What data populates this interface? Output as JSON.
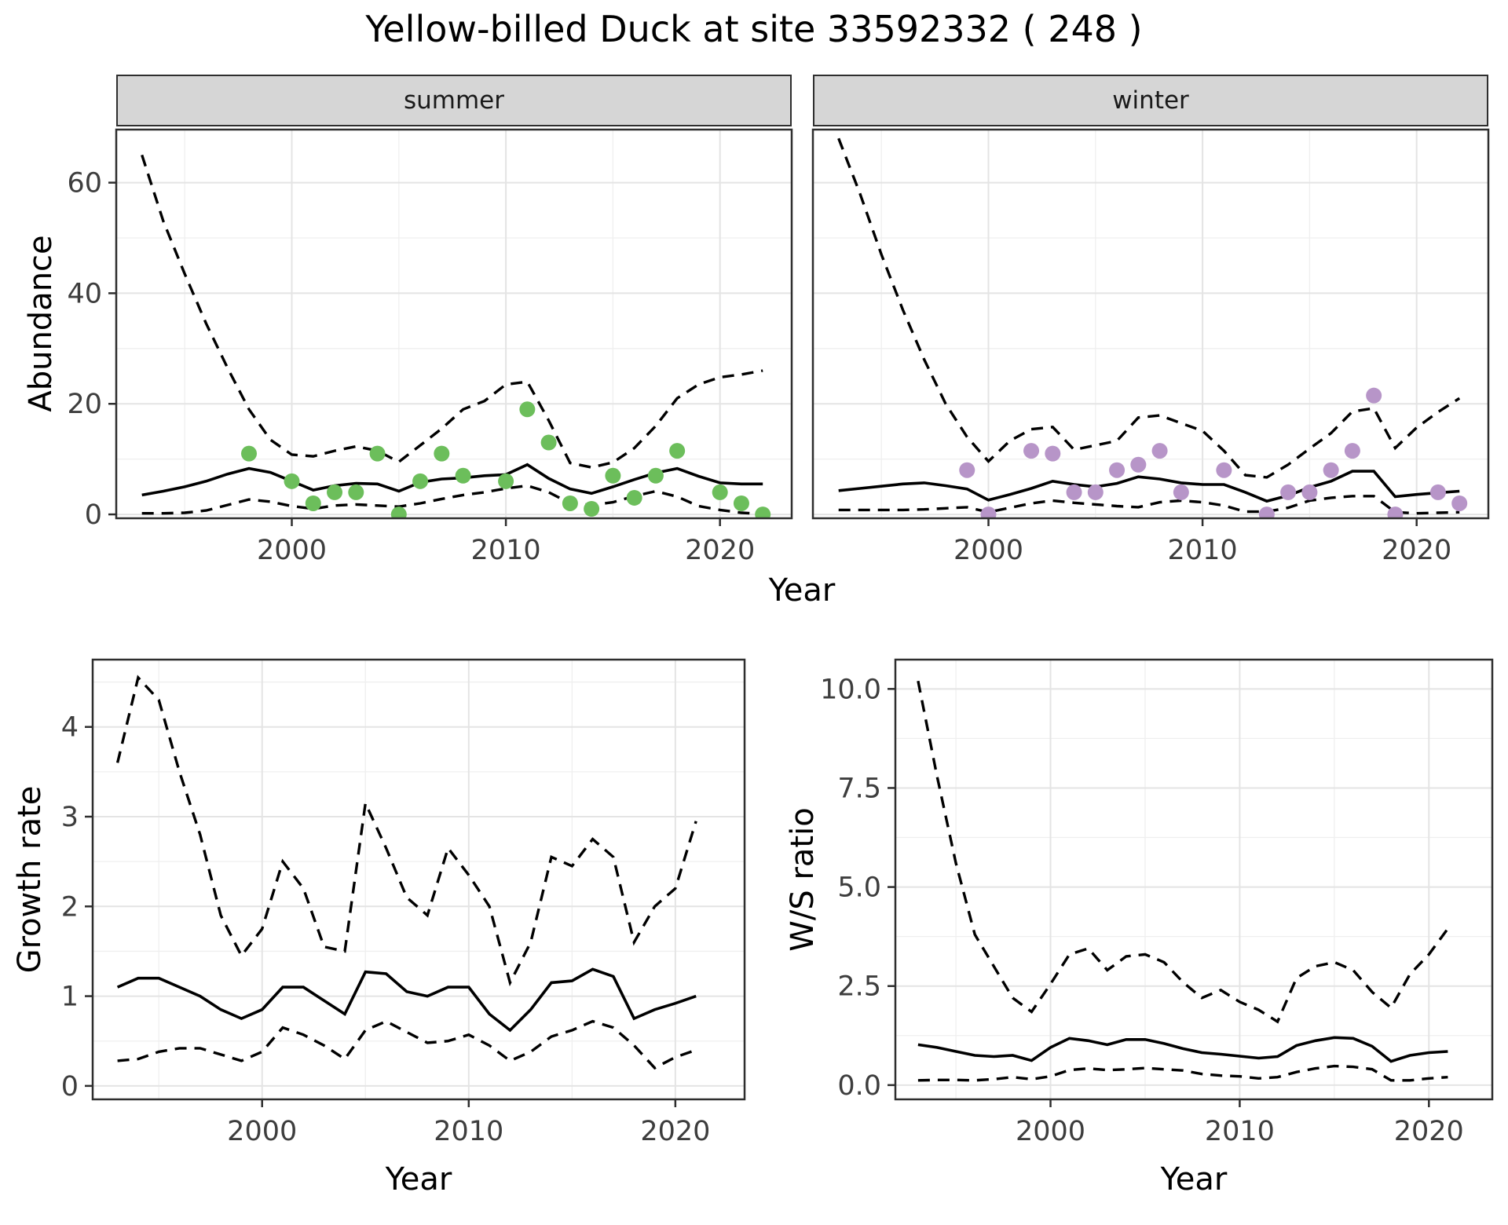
{
  "title": "Yellow-billed Duck at site 33592332 ( 248 )",
  "colors": {
    "summer_point": "#6cbe5b",
    "winter_point": "#b795c8",
    "line": "#000000",
    "strip_bg": "#d6d6d6",
    "panel_border": "#2e2e2e",
    "grid_major": "#e4e4e4",
    "grid_minor": "#efefef",
    "tick_text": "#3d3d3d"
  },
  "labels": {
    "year_axis_top": "Year",
    "year_axis_growth": "Year",
    "year_axis_ws": "Year"
  },
  "chart_data": [
    {
      "id": "abundance-summer",
      "type": "line",
      "facet_label": "summer",
      "ylabel": "Abundance",
      "xlabel": "Year",
      "legend_position": "none",
      "grid": true,
      "x_range": [
        1991.8,
        2023.35
      ],
      "y_range": [
        -0.7,
        69.6
      ],
      "x_ticks": [
        2000,
        2010,
        2020
      ],
      "x_tick_labels": [
        "2000",
        "2010",
        "2020"
      ],
      "x_minor": [
        1995,
        2005,
        2015
      ],
      "y_ticks": [
        0,
        20,
        40,
        60
      ],
      "y_tick_labels": [
        "0",
        "20",
        "40",
        "60"
      ],
      "y_minor": [
        10,
        30,
        50
      ],
      "years": [
        1993,
        1994,
        1995,
        1996,
        1997,
        1998,
        1999,
        2000,
        2001,
        2002,
        2003,
        2004,
        2005,
        2006,
        2007,
        2008,
        2009,
        2010,
        2011,
        2012,
        2013,
        2014,
        2015,
        2016,
        2017,
        2018,
        2019,
        2020,
        2021,
        2022
      ],
      "series": [
        {
          "name": "model estimate",
          "style": "solid",
          "values": [
            3.5,
            4.2,
            5.0,
            6.0,
            7.3,
            8.3,
            7.6,
            6.0,
            4.4,
            5.2,
            5.6,
            5.5,
            4.2,
            5.8,
            6.4,
            6.6,
            7.0,
            7.2,
            9.0,
            6.5,
            4.6,
            3.8,
            5.0,
            6.3,
            7.5,
            8.3,
            6.9,
            5.7,
            5.5,
            5.5
          ]
        },
        {
          "name": "lower CI",
          "style": "dashed",
          "values": [
            0.2,
            0.2,
            0.3,
            0.7,
            1.7,
            2.7,
            2.3,
            1.5,
            1.0,
            1.6,
            1.8,
            1.6,
            1.4,
            2.0,
            2.8,
            3.5,
            4.0,
            4.7,
            5.2,
            4.0,
            2.0,
            1.7,
            2.2,
            3.3,
            4.2,
            3.2,
            1.5,
            0.8,
            0.3,
            0.1
          ]
        },
        {
          "name": "upper CI",
          "style": "dashed",
          "values": [
            65,
            53,
            43.5,
            34.5,
            26.5,
            19,
            13.5,
            10.8,
            10.5,
            11.5,
            12.3,
            11.5,
            9.5,
            12.5,
            15.5,
            19,
            20.5,
            23.5,
            24,
            17,
            9.3,
            8.5,
            9.4,
            12,
            16,
            21,
            23.5,
            24.8,
            25.3,
            26
          ]
        }
      ],
      "points": {
        "name": "observed counts (summer)",
        "color": "#6cbe5b",
        "x": [
          1998,
          2000,
          2001,
          2002,
          2003,
          2004,
          2005,
          2006,
          2007,
          2008,
          2010,
          2011,
          2012,
          2013,
          2014,
          2015,
          2016,
          2017,
          2018,
          2020,
          2021,
          2022
        ],
        "y": [
          11,
          6,
          2,
          4,
          4,
          11,
          0,
          6,
          11,
          7,
          6,
          19,
          13,
          2,
          1,
          7,
          3,
          7,
          11.5,
          4,
          2,
          0
        ]
      }
    },
    {
      "id": "abundance-winter",
      "type": "line",
      "facet_label": "winter",
      "ylabel": "Abundance",
      "xlabel": "Year",
      "legend_position": "none",
      "grid": true,
      "x_range": [
        1991.8,
        2023.35
      ],
      "y_range": [
        -0.7,
        69.6
      ],
      "x_ticks": [
        2000,
        2010,
        2020
      ],
      "x_tick_labels": [
        "2000",
        "2010",
        "2020"
      ],
      "x_minor": [
        1995,
        2005,
        2015
      ],
      "y_ticks": [
        0,
        20,
        40,
        60
      ],
      "y_tick_labels": [
        "0",
        "20",
        "40",
        "60"
      ],
      "y_minor": [
        10,
        30,
        50
      ],
      "years": [
        1993,
        1994,
        1995,
        1996,
        1997,
        1998,
        1999,
        2000,
        2001,
        2002,
        2003,
        2004,
        2005,
        2006,
        2007,
        2008,
        2009,
        2010,
        2011,
        2012,
        2013,
        2014,
        2015,
        2016,
        2017,
        2018,
        2019,
        2020,
        2021,
        2022
      ],
      "series": [
        {
          "name": "model estimate",
          "style": "solid",
          "values": [
            4.3,
            4.7,
            5.1,
            5.5,
            5.7,
            5.2,
            4.6,
            2.6,
            3.6,
            4.7,
            6.0,
            5.4,
            5.0,
            5.6,
            6.8,
            6.4,
            5.7,
            5.4,
            5.4,
            4.0,
            2.4,
            3.4,
            4.9,
            6.0,
            7.8,
            7.8,
            3.2,
            3.6,
            3.9,
            4.2
          ]
        },
        {
          "name": "lower CI",
          "style": "dashed",
          "values": [
            0.8,
            0.8,
            0.8,
            0.8,
            0.9,
            1.1,
            1.3,
            0.4,
            1.2,
            2.0,
            2.5,
            2.1,
            1.8,
            1.5,
            1.3,
            2.2,
            2.5,
            2.2,
            1.6,
            0.5,
            0.5,
            1.2,
            2.5,
            3.0,
            3.3,
            3.3,
            0.4,
            0.2,
            0.3,
            0.4
          ]
        },
        {
          "name": "upper CI",
          "style": "dashed",
          "values": [
            68,
            58,
            47,
            37,
            28,
            20,
            14,
            9.6,
            13.3,
            15.4,
            15.8,
            11.7,
            12.5,
            13.3,
            17.5,
            17.9,
            16.5,
            15.1,
            11.5,
            7.1,
            6.7,
            9.0,
            11.9,
            14.7,
            18.6,
            19.2,
            12.0,
            15.7,
            18.5,
            21.0
          ]
        }
      ],
      "points": {
        "name": "observed counts (winter)",
        "color": "#b795c8",
        "x": [
          1999,
          2000,
          2002,
          2003,
          2004,
          2005,
          2006,
          2007,
          2008,
          2009,
          2011,
          2013,
          2014,
          2015,
          2016,
          2017,
          2018,
          2019,
          2021,
          2022
        ],
        "y": [
          8,
          0,
          11.5,
          11,
          4,
          4,
          8,
          9,
          11.5,
          4,
          8,
          0,
          4,
          4,
          8,
          11.5,
          21.5,
          0,
          4,
          2
        ]
      }
    },
    {
      "id": "growth-rate",
      "type": "line",
      "facet_label": "",
      "ylabel": "Growth rate",
      "xlabel": "Year",
      "legend_position": "none",
      "grid": true,
      "x_range": [
        1991.8,
        2023.35
      ],
      "y_range": [
        -0.15,
        4.75
      ],
      "x_ticks": [
        2000,
        2010,
        2020
      ],
      "x_tick_labels": [
        "2000",
        "2010",
        "2020"
      ],
      "x_minor": [
        1995,
        2005,
        2015
      ],
      "y_ticks": [
        0,
        1,
        2,
        3,
        4
      ],
      "y_tick_labels": [
        "0",
        "1",
        "2",
        "3",
        "4"
      ],
      "y_minor": [
        0.5,
        1.5,
        2.5,
        3.5,
        4.5
      ],
      "years": [
        1993,
        1994,
        1995,
        1996,
        1997,
        1998,
        1999,
        2000,
        2001,
        2002,
        2003,
        2004,
        2005,
        2006,
        2007,
        2008,
        2009,
        2010,
        2011,
        2012,
        2013,
        2014,
        2015,
        2016,
        2017,
        2018,
        2019,
        2020,
        2021
      ],
      "series": [
        {
          "name": "growth rate estimate",
          "style": "solid",
          "values": [
            1.1,
            1.2,
            1.2,
            1.1,
            1.0,
            0.85,
            0.75,
            0.85,
            1.1,
            1.1,
            0.95,
            0.8,
            1.27,
            1.25,
            1.05,
            1.0,
            1.1,
            1.1,
            0.8,
            0.62,
            0.85,
            1.15,
            1.17,
            1.3,
            1.22,
            0.75,
            0.85,
            0.92,
            1.0
          ]
        },
        {
          "name": "lower CI",
          "style": "dashed",
          "values": [
            0.28,
            0.3,
            0.38,
            0.42,
            0.42,
            0.35,
            0.28,
            0.38,
            0.65,
            0.57,
            0.45,
            0.3,
            0.62,
            0.72,
            0.6,
            0.48,
            0.5,
            0.57,
            0.45,
            0.28,
            0.38,
            0.55,
            0.62,
            0.72,
            0.65,
            0.45,
            0.2,
            0.32,
            0.4
          ]
        },
        {
          "name": "upper CI",
          "style": "dashed",
          "values": [
            3.6,
            4.55,
            4.3,
            3.5,
            2.8,
            1.9,
            1.45,
            1.75,
            2.5,
            2.2,
            1.55,
            1.5,
            3.15,
            2.65,
            2.1,
            1.9,
            2.65,
            2.35,
            2.0,
            1.15,
            1.6,
            2.55,
            2.45,
            2.75,
            2.55,
            1.6,
            2.0,
            2.2,
            2.95
          ]
        }
      ],
      "points": null
    },
    {
      "id": "ws-ratio",
      "type": "line",
      "facet_label": "",
      "ylabel": "W/S ratio",
      "xlabel": "Year",
      "legend_position": "none",
      "grid": true,
      "x_range": [
        1991.8,
        2023.35
      ],
      "y_range": [
        -0.36,
        10.74
      ],
      "x_ticks": [
        2000,
        2010,
        2020
      ],
      "x_tick_labels": [
        "2000",
        "2010",
        "2020"
      ],
      "x_minor": [
        1995,
        2005,
        2015
      ],
      "y_ticks": [
        0,
        2.5,
        5,
        7.5,
        10
      ],
      "y_tick_labels": [
        "0.0",
        "2.5",
        "5.0",
        "7.5",
        "10.0"
      ],
      "y_minor": [
        1.25,
        3.75,
        6.25,
        8.75
      ],
      "years": [
        1993,
        1994,
        1995,
        1996,
        1997,
        1998,
        1999,
        2000,
        2001,
        2002,
        2003,
        2004,
        2005,
        2006,
        2007,
        2008,
        2009,
        2010,
        2011,
        2012,
        2013,
        2014,
        2015,
        2016,
        2017,
        2018,
        2019,
        2020,
        2021
      ],
      "series": [
        {
          "name": "winter/summer ratio estimate",
          "style": "solid",
          "values": [
            1.02,
            0.95,
            0.85,
            0.75,
            0.72,
            0.75,
            0.62,
            0.95,
            1.18,
            1.12,
            1.02,
            1.15,
            1.15,
            1.05,
            0.92,
            0.82,
            0.78,
            0.73,
            0.68,
            0.72,
            1.0,
            1.12,
            1.2,
            1.18,
            0.98,
            0.6,
            0.75,
            0.82,
            0.85
          ]
        },
        {
          "name": "lower CI",
          "style": "dashed",
          "values": [
            0.12,
            0.13,
            0.13,
            0.12,
            0.15,
            0.2,
            0.15,
            0.22,
            0.38,
            0.42,
            0.38,
            0.4,
            0.43,
            0.4,
            0.37,
            0.28,
            0.24,
            0.22,
            0.17,
            0.2,
            0.33,
            0.42,
            0.48,
            0.46,
            0.4,
            0.12,
            0.12,
            0.17,
            0.2
          ]
        },
        {
          "name": "upper CI",
          "style": "dashed",
          "values": [
            10.2,
            7.8,
            5.6,
            3.8,
            3.0,
            2.2,
            1.85,
            2.55,
            3.3,
            3.45,
            2.9,
            3.25,
            3.3,
            3.1,
            2.6,
            2.2,
            2.4,
            2.1,
            1.9,
            1.6,
            2.7,
            3.0,
            3.1,
            2.9,
            2.35,
            1.95,
            2.8,
            3.3,
            3.95
          ]
        }
      ],
      "points": null
    }
  ]
}
